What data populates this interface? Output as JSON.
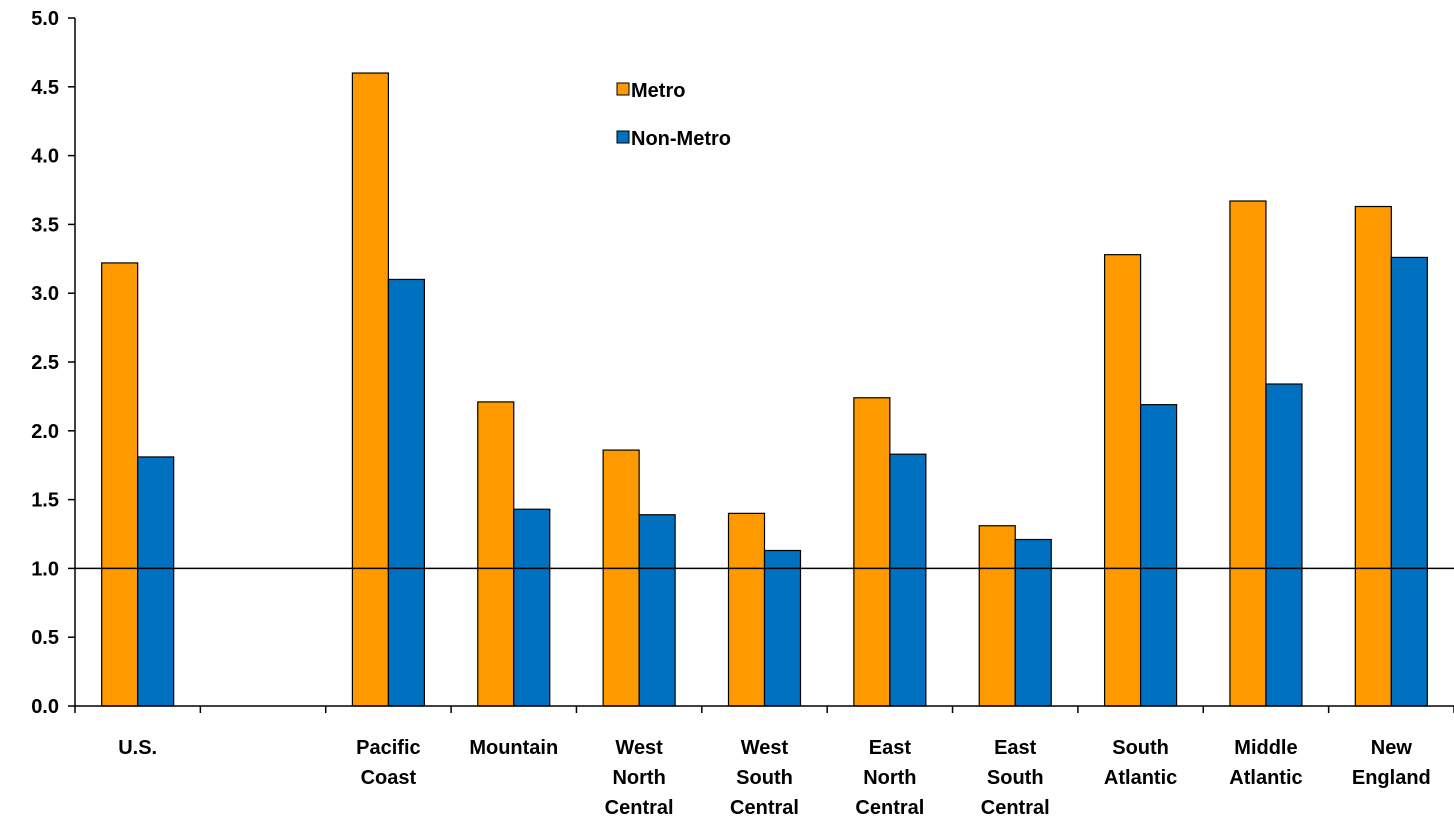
{
  "chart_data": {
    "type": "bar",
    "categories": [
      [
        "U.S."
      ],
      [
        ""
      ],
      [
        "Pacific",
        "Coast"
      ],
      [
        "Mountain"
      ],
      [
        "West",
        "North",
        "Central"
      ],
      [
        "West",
        "South",
        "Central"
      ],
      [
        "East",
        "North",
        "Central"
      ],
      [
        "East",
        "South",
        "Central"
      ],
      [
        "South",
        "Atlantic"
      ],
      [
        "Middle",
        "Atlantic"
      ],
      [
        "New",
        "England"
      ]
    ],
    "series": [
      {
        "name": "Metro",
        "color": "#FF9900",
        "values": [
          3.22,
          null,
          4.6,
          2.21,
          1.86,
          1.4,
          2.24,
          1.31,
          3.28,
          3.67,
          3.63
        ]
      },
      {
        "name": "Non-Metro",
        "color": "#0070C0",
        "values": [
          1.81,
          null,
          3.1,
          1.43,
          1.39,
          1.13,
          1.83,
          1.21,
          2.19,
          2.34,
          3.26
        ]
      }
    ],
    "ylim": [
      0,
      5.0
    ],
    "yticks": [
      "0.0",
      "0.5",
      "1.0",
      "1.5",
      "2.0",
      "2.5",
      "3.0",
      "3.5",
      "4.0",
      "4.5",
      "5.0"
    ],
    "reference_line": 1.0,
    "legend_position": "top-center",
    "title": "",
    "xlabel": "",
    "ylabel": "",
    "grid": false
  }
}
